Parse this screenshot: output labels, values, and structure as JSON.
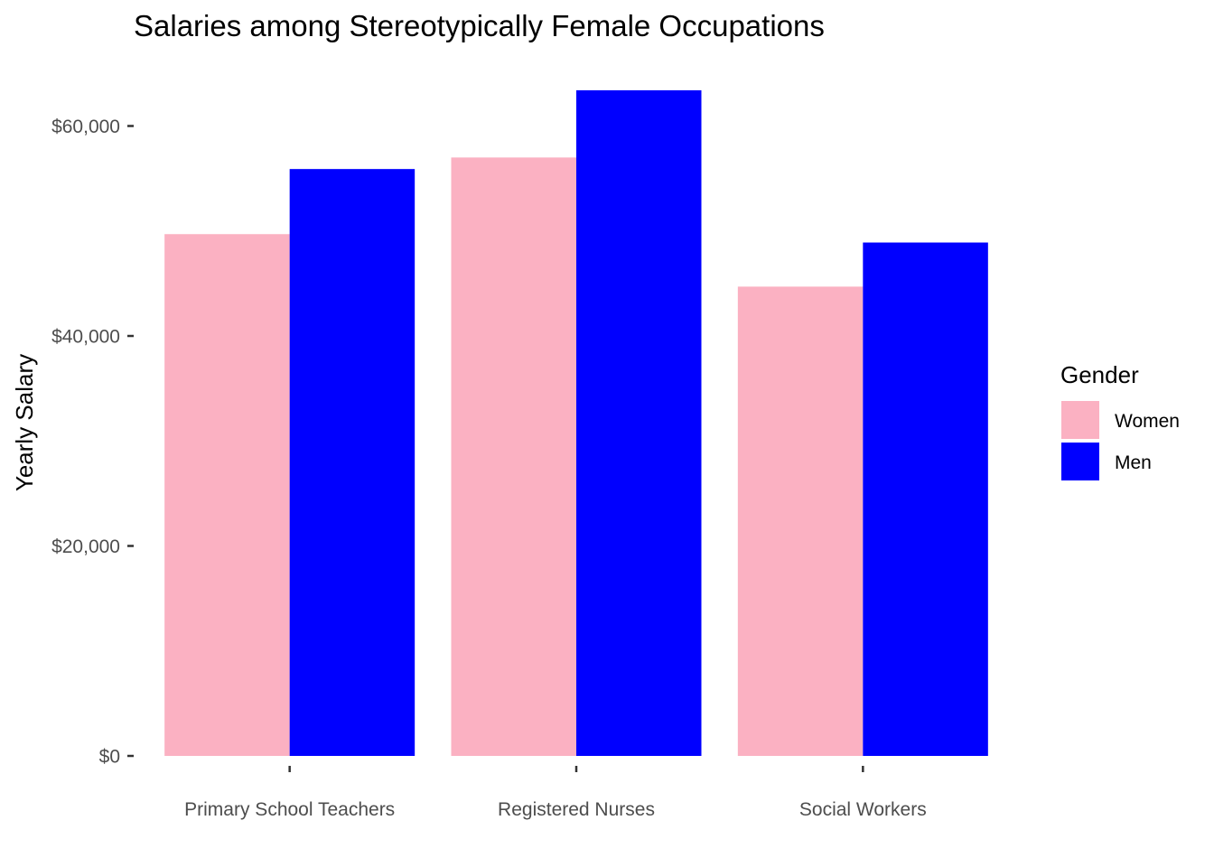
{
  "chart_data": {
    "type": "bar",
    "title": "Salaries among Stereotypically Female Occupations",
    "xlabel": "",
    "ylabel": "Yearly Salary",
    "categories": [
      "Primary School Teachers",
      "Registered Nurses",
      "Social Workers"
    ],
    "series": [
      {
        "name": "Women",
        "color": "#FBB1C2",
        "values": [
          49700,
          57000,
          44700
        ]
      },
      {
        "name": "Men",
        "color": "#0000FF",
        "values": [
          55900,
          63400,
          48900
        ]
      }
    ],
    "ylim": [
      0,
      65000
    ],
    "yticks": [
      0,
      20000,
      40000,
      60000
    ],
    "ytick_labels": [
      "$0",
      "$20,000",
      "$40,000",
      "$60,000"
    ],
    "grid": false,
    "legend": {
      "title": "Gender",
      "position": "right",
      "items": [
        "Women",
        "Men"
      ]
    }
  }
}
